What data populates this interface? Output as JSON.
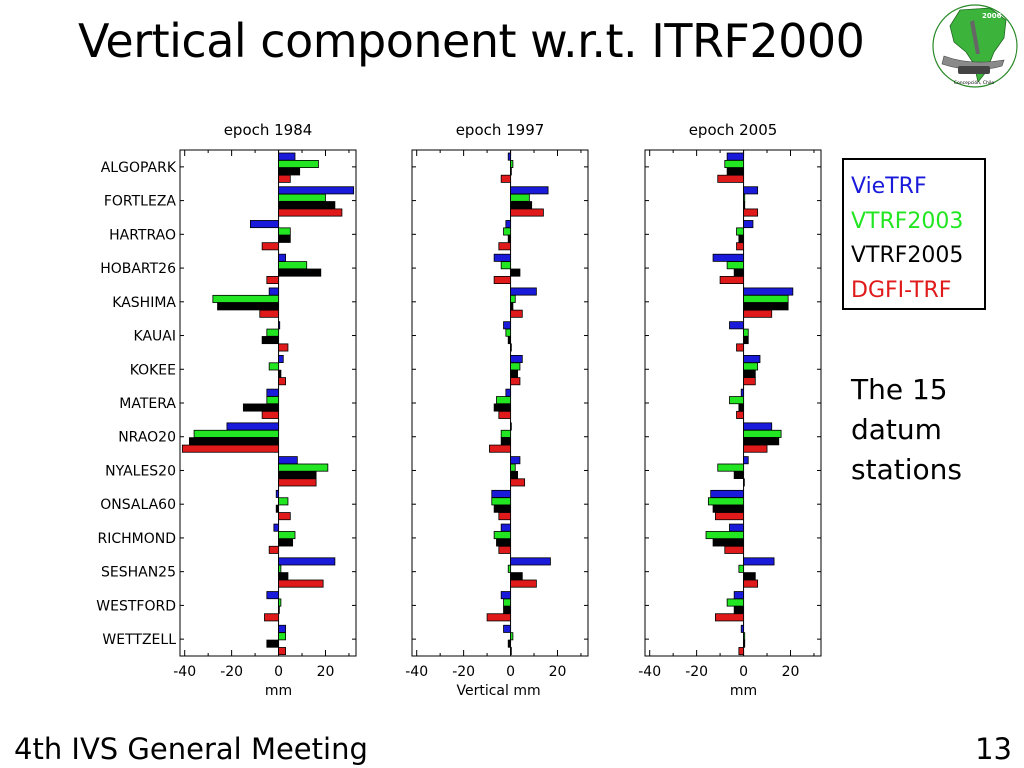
{
  "slide": {
    "title": "Vertical component w.r.t. ITRF2000",
    "footer": "4th IVS General Meeting",
    "page_number": "13",
    "note": [
      "The 15",
      "datum",
      "stations"
    ]
  },
  "chart_data": {
    "type": "bar",
    "orientation": "horizontal",
    "categories": [
      "ALGOPARK",
      "FORTLEZA",
      "HARTRAO",
      "HOBART26",
      "KASHIMA",
      "KAUAI",
      "KOKEE",
      "MATERA",
      "NRAO20",
      "NYALES20",
      "ONSALA60",
      "RICHMOND",
      "SESHAN25",
      "WESTFORD",
      "WETTZELL"
    ],
    "series_names": [
      "VieTRF",
      "VTRF2003",
      "VTRF2005",
      "DGFI-TRF"
    ],
    "colors": [
      "#1a1adb",
      "#22e622",
      "#000000",
      "#e01a1a"
    ],
    "xlim": [
      -42,
      33
    ],
    "xticks": [
      -40,
      -20,
      0,
      20
    ],
    "panels": [
      {
        "title": "epoch 1984",
        "xlabel": "mm",
        "series": [
          {
            "name": "VieTRF",
            "values": [
              7,
              32,
              -12,
              3,
              -4,
              0.5,
              2,
              -5,
              -22,
              8,
              -1,
              -2,
              24,
              -5,
              3
            ]
          },
          {
            "name": "VTRF2003",
            "values": [
              17,
              20,
              5,
              12,
              -28,
              -5,
              -4,
              -5,
              -36,
              21,
              4,
              7,
              1,
              1,
              3
            ]
          },
          {
            "name": "VTRF2005",
            "values": [
              9,
              24,
              5,
              18,
              -26,
              -7,
              1,
              -15,
              -38,
              16,
              -1,
              6,
              4,
              0,
              -5
            ]
          },
          {
            "name": "DGFI-TRF",
            "values": [
              5,
              27,
              -7,
              -5,
              -8,
              4,
              3,
              -7,
              -41,
              16,
              5,
              -4,
              19,
              -6,
              3
            ]
          }
        ]
      },
      {
        "title": "epoch 1997",
        "xlabel": "Vertical mm",
        "series": [
          {
            "name": "VieTRF",
            "values": [
              -1,
              16,
              -2,
              -7,
              11,
              -3,
              5,
              -2,
              0,
              4,
              -8,
              -4,
              17,
              -4,
              -3
            ]
          },
          {
            "name": "VTRF2003",
            "values": [
              1,
              8,
              -3,
              -4,
              2,
              -2,
              4,
              -6,
              -4,
              2,
              -8,
              -7,
              -1,
              -3,
              1
            ]
          },
          {
            "name": "VTRF2005",
            "values": [
              0,
              9,
              -1,
              4,
              1,
              -1,
              3,
              -7,
              -4,
              3,
              -7,
              -6,
              5,
              -3,
              -1
            ]
          },
          {
            "name": "DGFI-TRF",
            "values": [
              -4,
              14,
              -5,
              -7,
              5,
              0,
              4,
              -5,
              -9,
              6,
              -5,
              -5,
              11,
              -10,
              0
            ]
          }
        ]
      },
      {
        "title": "epoch 2005",
        "xlabel": "mm",
        "series": [
          {
            "name": "VieTRF",
            "values": [
              -7,
              6,
              4,
              -13,
              21,
              -6,
              7,
              -1,
              12,
              2,
              -14,
              -6,
              13,
              -4,
              -1
            ]
          },
          {
            "name": "VTRF2003",
            "values": [
              -8,
              0.5,
              -3,
              -7,
              19,
              2,
              6,
              -6,
              16,
              -11,
              -15,
              -16,
              -2,
              -7,
              0.5
            ]
          },
          {
            "name": "VTRF2005",
            "values": [
              -7,
              0.5,
              -2,
              -4,
              19,
              2,
              5,
              -2,
              15,
              -4,
              -13,
              -13,
              5,
              -4,
              0.5
            ]
          },
          {
            "name": "DGFI-TRF",
            "values": [
              -11,
              6,
              -3,
              -10,
              12,
              -3,
              5,
              -3,
              10,
              0,
              -12,
              -8,
              6,
              -12,
              -2
            ]
          }
        ]
      }
    ]
  },
  "legend": [
    {
      "label": "VieTRF",
      "color": "#1a1adb"
    },
    {
      "label": "VTRF2003",
      "color": "#22e622"
    },
    {
      "label": "VTRF2005",
      "color": "#000000"
    },
    {
      "label": "DGFI-TRF",
      "color": "#e01a1a"
    }
  ],
  "logo": {
    "text_top": "2006",
    "text_bottom": "Concepción, Chile"
  }
}
